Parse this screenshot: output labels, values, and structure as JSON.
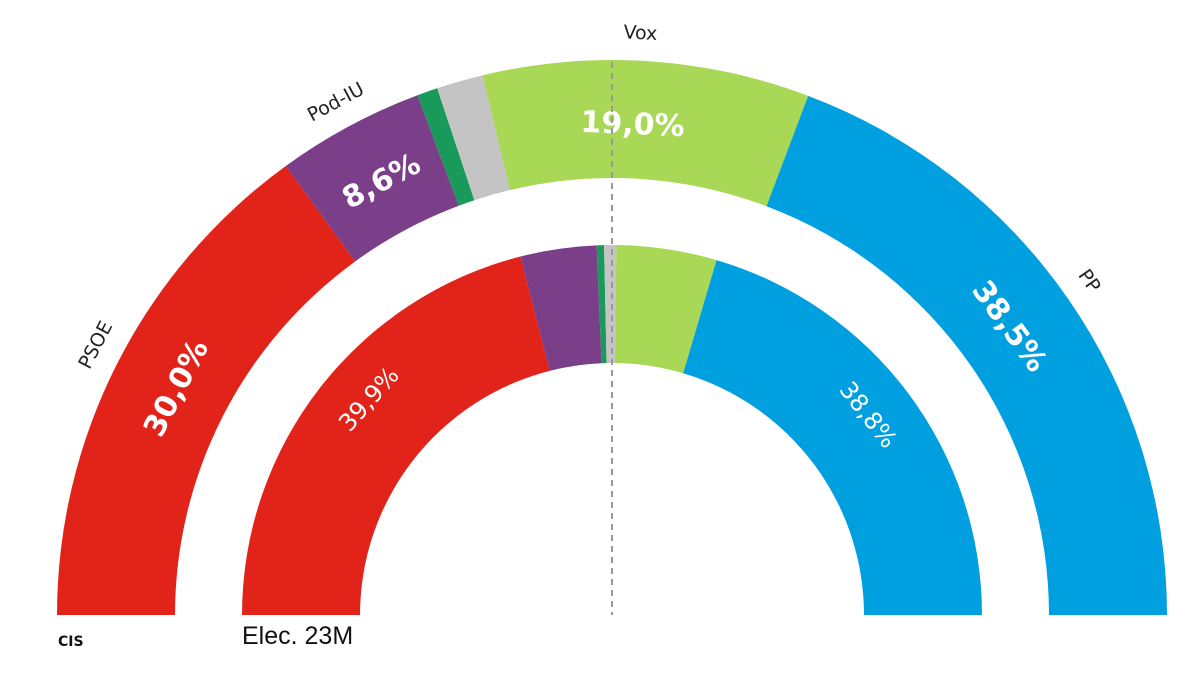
{
  "chart_data": {
    "type": "semicircle-donut",
    "title": "",
    "source_label": "CIS",
    "rings": [
      {
        "ring": "outer",
        "series_name": "CIS",
        "segments": [
          {
            "party": "PSOE",
            "value": 30.0,
            "label": "30,0%",
            "color": "#e2231a"
          },
          {
            "party": "Pod-IU",
            "value": 8.6,
            "label": "8,6%",
            "color": "#7b3f8a"
          },
          {
            "party": "",
            "value": 1.2,
            "label": "",
            "color": "#1a9a5a"
          },
          {
            "party": "",
            "value": 2.7,
            "label": "",
            "color": "#c4c4c4"
          },
          {
            "party": "Vox",
            "value": 19.0,
            "label": "19,0%",
            "color": "#a8d855"
          },
          {
            "party": "PP",
            "value": 38.5,
            "label": "38,5%",
            "color": "#009fe0"
          }
        ]
      },
      {
        "ring": "inner",
        "series_name": "Elec. 23M",
        "segments": [
          {
            "party": "PSOE",
            "value": 39.9,
            "label": "39,9%",
            "color": "#e2231a"
          },
          {
            "party": "Pod-IU",
            "value": 6.3,
            "label": "",
            "color": "#7b3f8a"
          },
          {
            "party": "",
            "value": 0.6,
            "label": "",
            "color": "#1a9a5a"
          },
          {
            "party": "",
            "value": 1.0,
            "label": "",
            "color": "#c4c4c4"
          },
          {
            "party": "Vox",
            "value": 8.3,
            "label": "",
            "color": "#a8d855"
          },
          {
            "party": "PP",
            "value": 38.8,
            "label": "38,8%",
            "color": "#009fe0"
          }
        ]
      }
    ],
    "midline": "dashed"
  }
}
